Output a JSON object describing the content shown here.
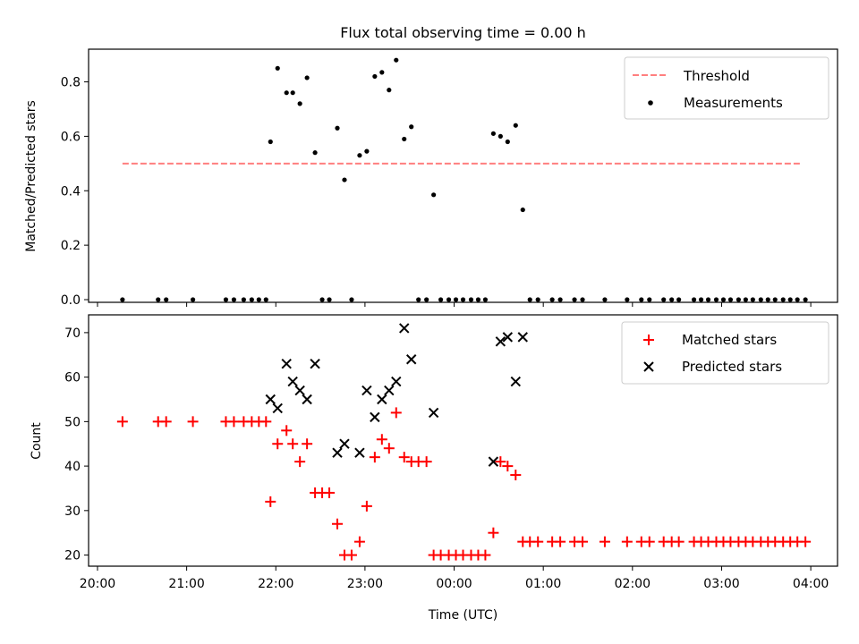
{
  "chart_data": [
    {
      "type": "scatter",
      "title": "Flux total observing time = 0.00 h",
      "xlabel": "",
      "ylabel": "Matched/Predicted stars",
      "ylim": [
        0,
        0.92
      ],
      "yticks": [
        0.0,
        0.2,
        0.4,
        0.6,
        0.8
      ],
      "ytick_labels": [
        "0.0",
        "0.2",
        "0.4",
        "0.6",
        "0.8"
      ],
      "xlim": [
        -0.1,
        8.3
      ],
      "xticks": [
        0,
        1,
        2,
        3,
        4,
        5,
        6,
        7,
        8
      ],
      "legend_position": "top-right",
      "threshold": {
        "name": "Threshold",
        "value": 0.5,
        "x_range": [
          0.28,
          7.88
        ],
        "color": "#ff7f7f"
      },
      "series": [
        {
          "name": "Measurements",
          "color": "#000000",
          "x": [
            0.28,
            0.68,
            0.77,
            1.07,
            1.44,
            1.53,
            1.64,
            1.73,
            1.81,
            1.89,
            1.94,
            2.02,
            2.12,
            2.19,
            2.27,
            2.35,
            2.44,
            2.52,
            2.6,
            2.69,
            2.77,
            2.85,
            2.94,
            3.02,
            3.11,
            3.19,
            3.27,
            3.35,
            3.44,
            3.52,
            3.6,
            3.69,
            3.77,
            3.85,
            3.94,
            4.02,
            4.1,
            4.19,
            4.27,
            4.35,
            4.44,
            4.52,
            4.6,
            4.69,
            4.77,
            4.85,
            4.94,
            5.1,
            5.19,
            5.35,
            5.44,
            5.69,
            5.94,
            6.1,
            6.19,
            6.35,
            6.44,
            6.52,
            6.69,
            6.77,
            6.85,
            6.94,
            7.02,
            7.1,
            7.19,
            7.27,
            7.35,
            7.44,
            7.52,
            7.6,
            7.69,
            7.77,
            7.85,
            7.94
          ],
          "y": [
            0,
            0,
            0,
            0,
            0,
            0,
            0,
            0,
            0,
            0,
            0.58,
            0.85,
            0.76,
            0.76,
            0.72,
            0.815,
            0.54,
            0,
            0,
            0.63,
            0.44,
            0,
            0.53,
            0.545,
            0.82,
            0.835,
            0.77,
            0.88,
            0.59,
            0.635,
            0,
            0,
            0.385,
            0,
            0,
            0,
            0,
            0,
            0,
            0,
            0.61,
            0.6,
            0.58,
            0.64,
            0.33,
            0,
            0,
            0,
            0,
            0,
            0,
            0,
            0,
            0,
            0,
            0,
            0,
            0,
            0,
            0,
            0,
            0,
            0,
            0,
            0,
            0,
            0,
            0,
            0,
            0,
            0,
            0,
            0,
            0
          ]
        }
      ]
    },
    {
      "type": "scatter",
      "title": "",
      "xlabel": "Time (UTC)",
      "ylabel": "Count",
      "ylim": [
        17.5,
        74
      ],
      "yticks": [
        20,
        30,
        40,
        50,
        60,
        70
      ],
      "ytick_labels": [
        "20",
        "30",
        "40",
        "50",
        "60",
        "70"
      ],
      "xlim": [
        -0.1,
        8.3
      ],
      "xticks": [
        0,
        1,
        2,
        3,
        4,
        5,
        6,
        7,
        8
      ],
      "xtick_labels": [
        "20:00",
        "21:00",
        "22:00",
        "23:00",
        "00:00",
        "01:00",
        "02:00",
        "03:00",
        "04:00"
      ],
      "legend_position": "top-right",
      "series": [
        {
          "name": "Matched stars",
          "color": "#ff0000",
          "marker": "plus",
          "x": [
            0.28,
            0.68,
            0.77,
            1.07,
            1.44,
            1.53,
            1.64,
            1.73,
            1.81,
            1.89,
            1.94,
            2.02,
            2.12,
            2.19,
            2.27,
            2.35,
            2.44,
            2.52,
            2.6,
            2.69,
            2.77,
            2.85,
            2.94,
            3.02,
            3.11,
            3.19,
            3.27,
            3.35,
            3.44,
            3.52,
            3.6,
            3.69,
            3.77,
            3.85,
            3.94,
            4.02,
            4.1,
            4.19,
            4.27,
            4.35,
            4.44,
            4.52,
            4.6,
            4.69,
            4.77,
            4.85,
            4.94,
            5.1,
            5.19,
            5.35,
            5.44,
            5.69,
            5.94,
            6.1,
            6.19,
            6.35,
            6.44,
            6.52,
            6.69,
            6.77,
            6.85,
            6.94,
            7.02,
            7.1,
            7.19,
            7.27,
            7.35,
            7.44,
            7.52,
            7.6,
            7.69,
            7.77,
            7.85,
            7.94
          ],
          "y": [
            50,
            50,
            50,
            50,
            50,
            50,
            50,
            50,
            50,
            50,
            32,
            45,
            48,
            45,
            41,
            45,
            34,
            34,
            34,
            27,
            20,
            20,
            23,
            31,
            42,
            46,
            44,
            52,
            42,
            41,
            41,
            41,
            20,
            20,
            20,
            20,
            20,
            20,
            20,
            20,
            25,
            41,
            40,
            38,
            23,
            23,
            23,
            23,
            23,
            23,
            23,
            23,
            23,
            23,
            23,
            23,
            23,
            23,
            23,
            23,
            23,
            23,
            23,
            23,
            23,
            23,
            23,
            23,
            23,
            23,
            23,
            23,
            23,
            23
          ]
        },
        {
          "name": "Predicted stars",
          "color": "#000000",
          "marker": "x",
          "x": [
            1.94,
            2.02,
            2.12,
            2.19,
            2.27,
            2.35,
            2.44,
            2.69,
            2.77,
            2.94,
            3.02,
            3.11,
            3.19,
            3.27,
            3.35,
            3.44,
            3.52,
            3.77,
            4.44,
            4.52,
            4.6,
            4.69,
            4.77
          ],
          "y": [
            55,
            53,
            63,
            59,
            57,
            55,
            63,
            43,
            45,
            43,
            57,
            51,
            55,
            57,
            59,
            71,
            64,
            52,
            41,
            68,
            69,
            59,
            69
          ]
        }
      ]
    }
  ]
}
